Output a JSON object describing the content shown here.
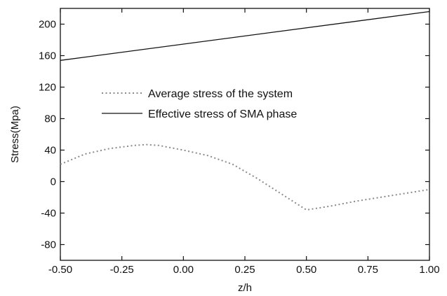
{
  "chart_data": {
    "type": "line",
    "xlabel": "z/h",
    "ylabel": "Stress(Mpa)",
    "xlim": [
      -0.5,
      1.0
    ],
    "ylim": [
      -100,
      220
    ],
    "xticks": [
      -0.5,
      -0.25,
      0.0,
      0.25,
      0.5,
      0.75,
      1.0
    ],
    "xtick_labels": [
      "-0.50",
      "-0.25",
      "0.00",
      "0.25",
      "0.50",
      "0.75",
      "1.00"
    ],
    "yticks": [
      -80,
      -40,
      0,
      40,
      80,
      120,
      160,
      200
    ],
    "ytick_labels": [
      "-80",
      "-40",
      "0",
      "40",
      "80",
      "120",
      "160",
      "200"
    ],
    "grid": false,
    "legend_position": "center-left",
    "series": [
      {
        "name": "Average stress of the system",
        "style": "dotted",
        "color": "#8a8a8a",
        "x": [
          -0.5,
          -0.4,
          -0.3,
          -0.2,
          -0.15,
          -0.1,
          0.0,
          0.1,
          0.2,
          0.3,
          0.4,
          0.5,
          0.6,
          0.7,
          0.8,
          0.9,
          1.0
        ],
        "y": [
          22,
          35,
          42,
          46,
          47,
          46,
          40,
          33,
          22,
          4,
          -16,
          -36,
          -31,
          -25,
          -20,
          -15,
          -10
        ]
      },
      {
        "name": "Effective stress of SMA phase",
        "style": "solid",
        "color": "#111111",
        "x": [
          -0.5,
          1.0
        ],
        "y": [
          154,
          216
        ]
      }
    ]
  }
}
